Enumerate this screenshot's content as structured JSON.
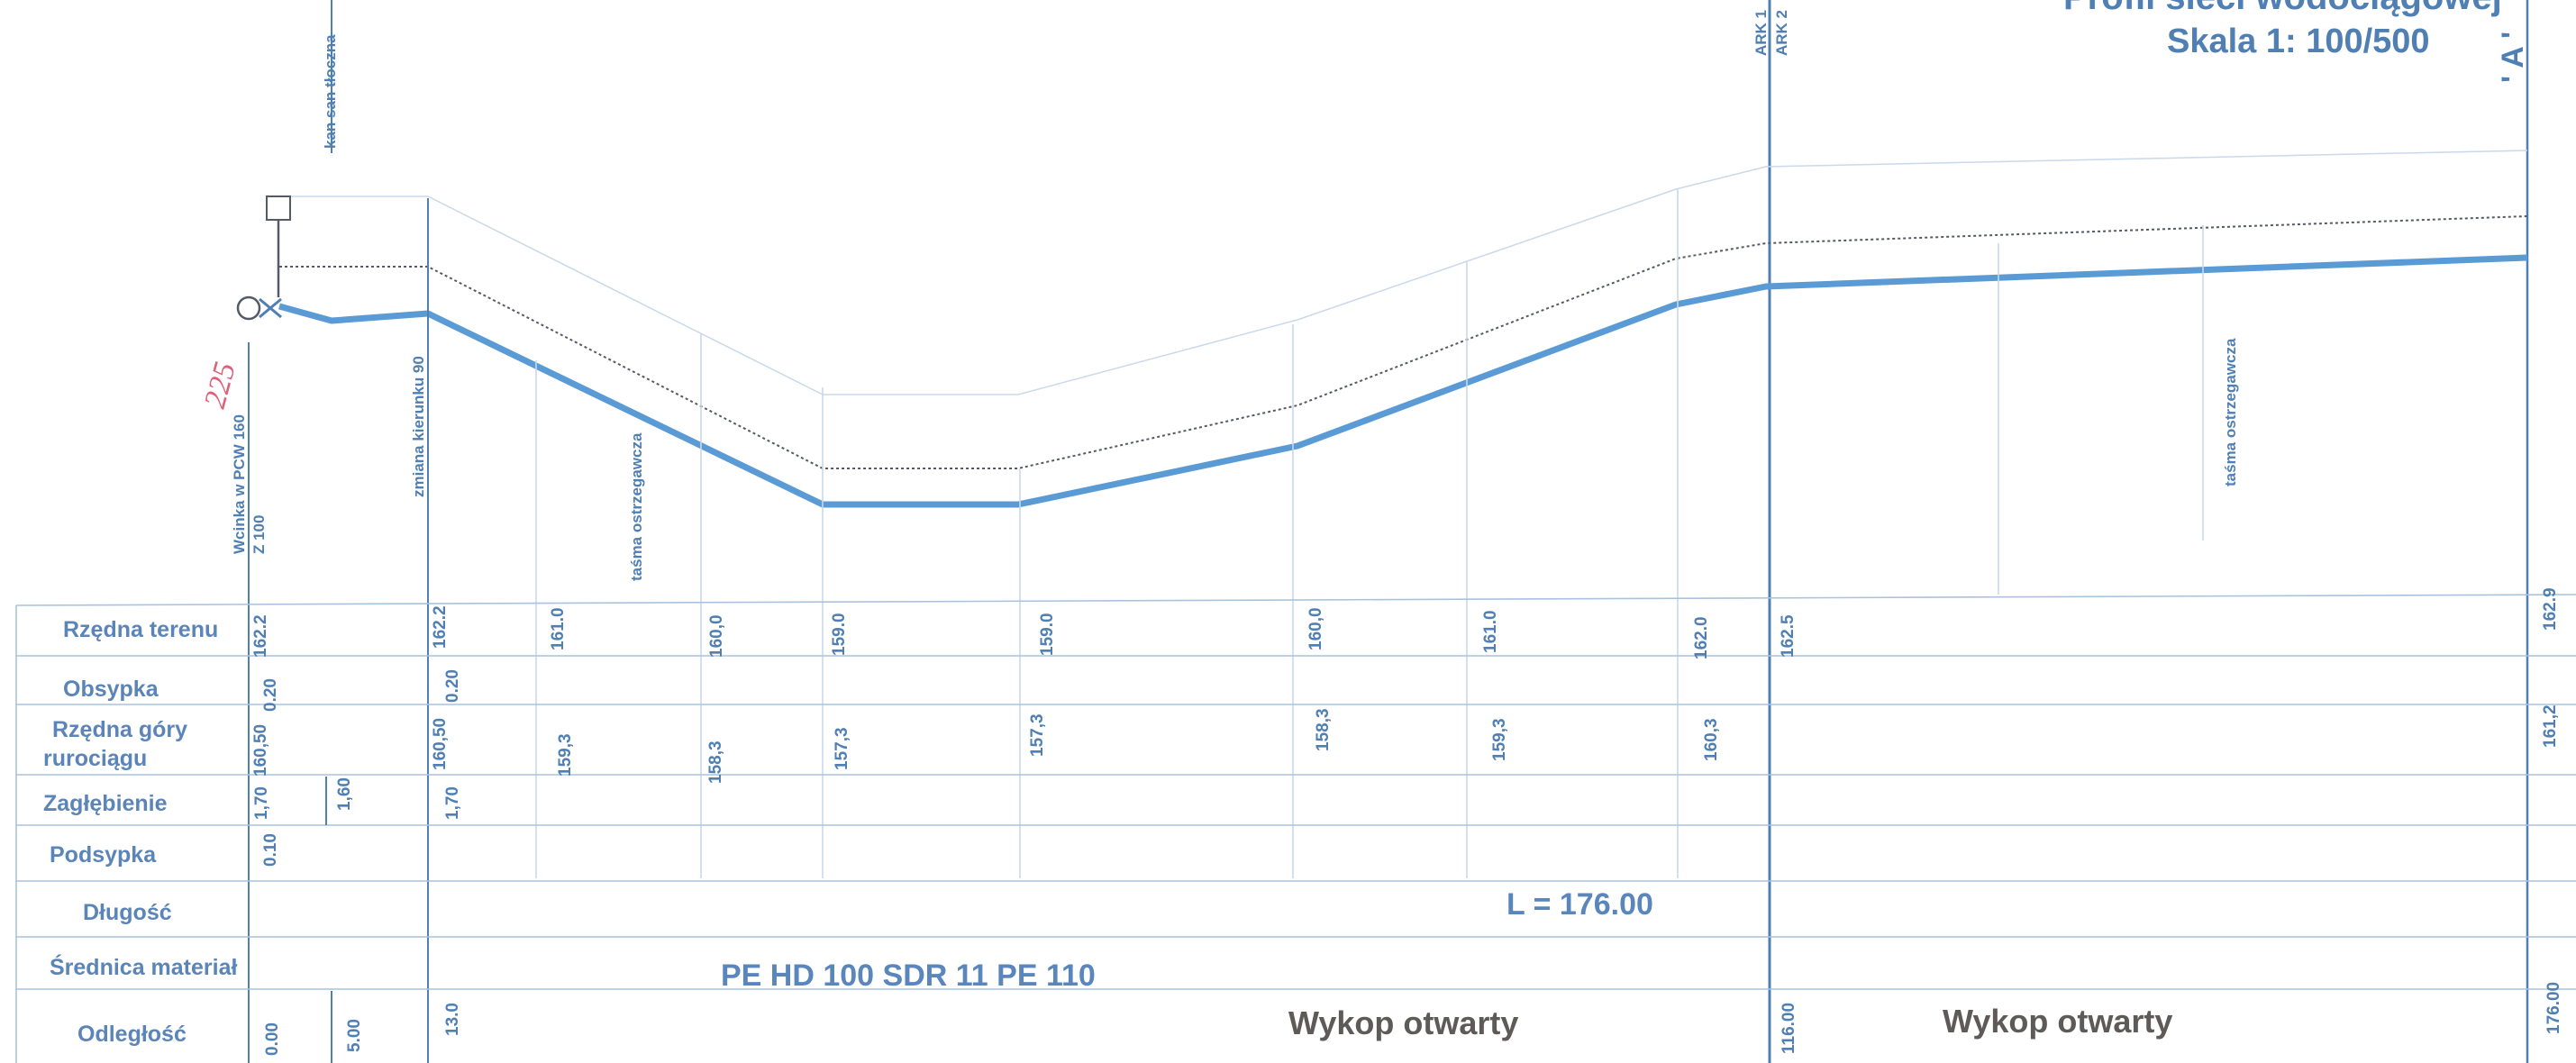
{
  "header": {
    "title": "Profil sieci wodociągowej",
    "scale": "Skala  1: 100/500",
    "section_mark": "' A '",
    "ark1": "ARK 1",
    "ark2": "ARK 2"
  },
  "annotations": {
    "kan": "kan san tłoczna",
    "wcinka": "Wcinka w PCW 160",
    "z100": "Z 100",
    "zmiana": "zmiana kierunku 90",
    "tasma_1": "taśma ostrzegawcza",
    "tasma_2": "taśma ostrzegawcza",
    "handwritten": "225"
  },
  "rows": {
    "rzedna_terenu": "Rzędna terenu",
    "obsypka": "Obsypka",
    "rzedna_gory_1": "Rzędna góry",
    "rzedna_gory_2": "rurociągu",
    "zaglebienie": "Zagłębienie",
    "podsypka": "Podsypka",
    "dlugosc": "Długość",
    "srednica": "Średnica materiał",
    "odleglosc": "Odległość"
  },
  "values": {
    "terrain": [
      "162.2",
      "162.2",
      "161.0",
      "160,0",
      "159.0",
      "159.0",
      "160,0",
      "161.0",
      "162.0",
      "162.5",
      "162.9"
    ],
    "obsypka": [
      "0.20",
      "0.20"
    ],
    "pipe_top": [
      "160,50",
      "160,50",
      "159,3",
      "158,3",
      "157,3",
      "157,3",
      "158,3",
      "159,3",
      "160,3",
      "161,2"
    ],
    "zaglebienie": [
      "1,70",
      "1,60",
      "1,70"
    ],
    "podsypka": [
      "0.10"
    ],
    "odleglosc": [
      "0.00",
      "5.00",
      "13.0",
      "116.00",
      "176.00"
    ]
  },
  "main": {
    "length": "L = 176.00",
    "material": "PE HD 100 SDR 11 PE 110",
    "wykop_1": "Wykop otwarty",
    "wykop_2": "Wykop otwarty"
  },
  "colors": {
    "pipe": "#5b9bd5",
    "lines": "#4f7fb3",
    "faint": "#c9d8ea",
    "dark_text": "#5e5a58",
    "handwriting": "#e0607a"
  }
}
